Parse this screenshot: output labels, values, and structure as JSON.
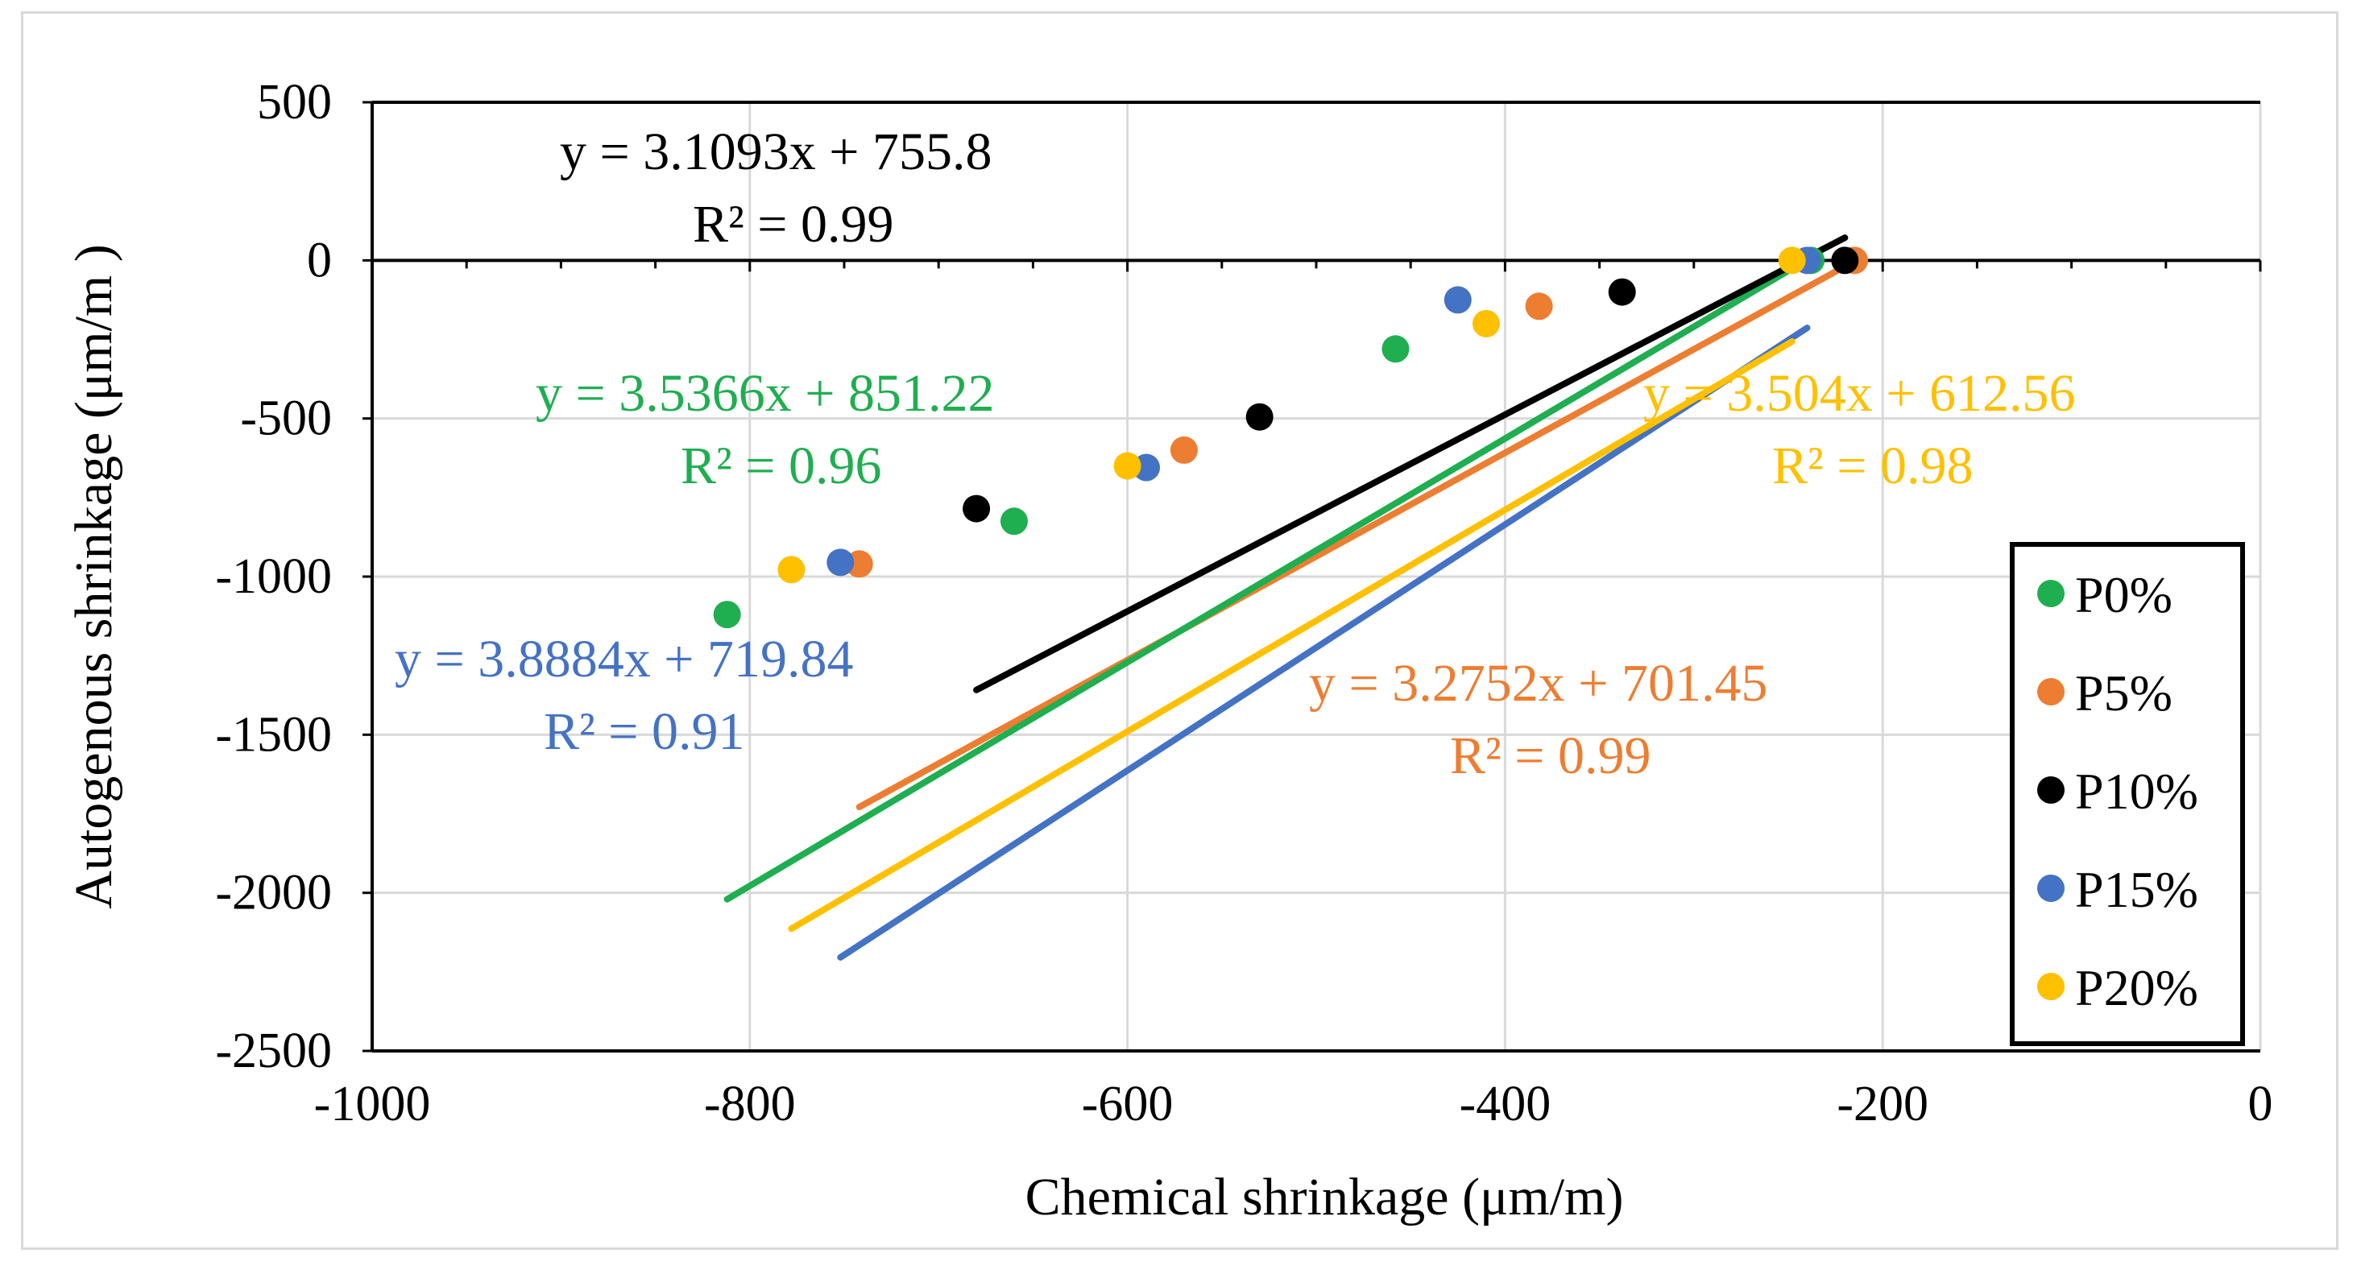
{
  "chart_data": {
    "type": "scatter",
    "xlabel": "Chemical shrinkage (μm/m)",
    "ylabel": "Autogenous shrinkage (μm/m )",
    "xlim": [
      -1000,
      0
    ],
    "ylim": [
      -2500,
      500
    ],
    "x_ticks": [
      -1000,
      -800,
      -600,
      -400,
      -200,
      0
    ],
    "y_ticks": [
      500,
      0,
      -500,
      -1000,
      -1500,
      -2000,
      -2500
    ],
    "grid": true,
    "legend_position": "bottom-right",
    "series": [
      {
        "name": "P0%",
        "color": "#1fae50",
        "points": [
          [
            -812,
            -1120
          ],
          [
            -660,
            -825
          ],
          [
            -458,
            -280
          ],
          [
            -238,
            0
          ]
        ],
        "fit": {
          "x_start": -812,
          "x_end": -236
        },
        "equation": "y = 3.5366x + 851.22",
        "r2": "R² = 0.96"
      },
      {
        "name": "P5%",
        "color": "#ed7d31",
        "points": [
          [
            -742,
            -960
          ],
          [
            -570,
            -600
          ],
          [
            -382,
            -145
          ],
          [
            -215,
            0
          ]
        ],
        "fit": {
          "x_start": -742,
          "x_end": -215
        },
        "equation": "y = 3.2752x + 701.45",
        "r2": "R² = 0.99"
      },
      {
        "name": "P10%",
        "color": "#000000",
        "points": [
          [
            -680,
            -785
          ],
          [
            -530,
            -495
          ],
          [
            -338,
            -100
          ],
          [
            -220,
            0
          ]
        ],
        "fit": {
          "x_start": -680,
          "x_end": -220
        },
        "equation": "y = 3.1093x + 755.8",
        "r2": "R² = 0.99"
      },
      {
        "name": "P15%",
        "color": "#4472c4",
        "points": [
          [
            -752,
            -955
          ],
          [
            -590,
            -655
          ],
          [
            -425,
            -125
          ],
          [
            -240,
            0
          ]
        ],
        "fit": {
          "x_start": -752,
          "x_end": -240
        },
        "equation": "y = 3.8884x + 719.84",
        "r2": "R² = 0.91"
      },
      {
        "name": "P20%",
        "color": "#ffc000",
        "points": [
          [
            -778,
            -978
          ],
          [
            -600,
            -650
          ],
          [
            -410,
            -200
          ],
          [
            -248,
            0
          ]
        ],
        "fit": {
          "x_start": -778,
          "x_end": -248
        },
        "equation": "y = 3.504x + 612.56",
        "r2": "R² = 0.98"
      }
    ]
  }
}
